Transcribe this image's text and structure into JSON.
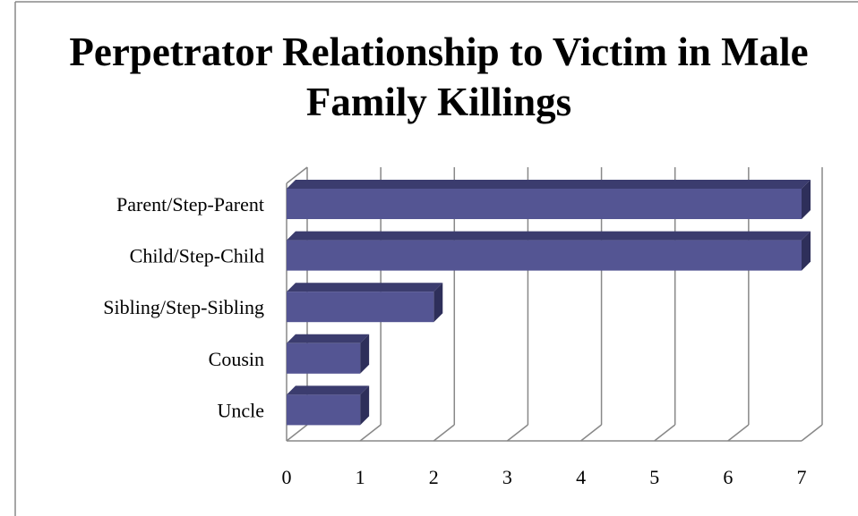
{
  "chart_data": {
    "type": "bar3d_horizontal",
    "title": "Perpetrator Relationship to Victim in Male Family Killings",
    "categories": [
      "Parent/Step-Parent",
      "Child/Step-Child",
      "Sibling/Step-Sibling",
      "Cousin",
      "Uncle"
    ],
    "values": [
      7,
      7,
      2,
      1,
      1
    ],
    "color": "#545593",
    "xlim": [
      0,
      7
    ],
    "xticks": [
      0,
      1,
      2,
      3,
      4,
      5,
      6,
      7
    ],
    "grid": true
  }
}
